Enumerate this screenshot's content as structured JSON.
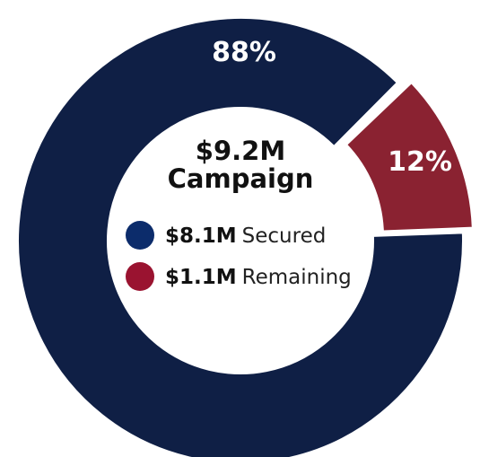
{
  "chart_data": {
    "type": "pie",
    "title_line1": "$9.2M",
    "title_line2": "Campaign",
    "slices": [
      {
        "label": "Secured",
        "amount": "$8.1M",
        "percent": 88,
        "percent_label": "88%",
        "color": "#0f1f45",
        "legend_color": "#0c2c6b"
      },
      {
        "label": "Remaining",
        "amount": "$1.1M",
        "percent": 12,
        "percent_label": "12%",
        "color": "#8a2231",
        "legend_color": "#9a1330"
      }
    ]
  }
}
